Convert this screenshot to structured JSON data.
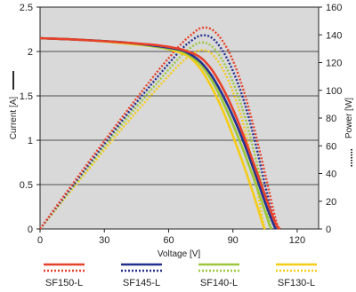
{
  "chart_data": {
    "type": "line",
    "xlabel": "Voltage [V]",
    "ylabel_left": "Current [A]",
    "ylabel_right": "Power [W]",
    "xlim": [
      0,
      130
    ],
    "ylim_left": [
      0,
      2.5
    ],
    "ylim_right": [
      0,
      160
    ],
    "x_ticks": [
      "0",
      "30",
      "60",
      "90",
      "120"
    ],
    "x_tick_values": [
      0,
      30,
      60,
      90,
      120
    ],
    "y_left_ticks": [
      "0",
      "0.5",
      "1",
      "1.5",
      "2",
      "2.5"
    ],
    "y_left_tick_values": [
      0,
      0.5,
      1,
      1.5,
      2,
      2.5
    ],
    "y_right_ticks": [
      "0",
      "20",
      "40",
      "60",
      "80",
      "100",
      "120",
      "140",
      "160"
    ],
    "y_right_tick_values": [
      0,
      20,
      40,
      60,
      80,
      100,
      120,
      140,
      160
    ],
    "grid": "horizontal",
    "legend_position": "bottom",
    "series": [
      {
        "name": "SF150-L",
        "color": "#e8412b",
        "current": {
          "x": [
            0,
            20,
            40,
            55,
            65,
            70,
            75,
            80,
            85,
            90,
            95,
            100,
            105,
            110,
            112
          ],
          "y": [
            2.15,
            2.13,
            2.1,
            2.07,
            2.03,
            1.99,
            1.93,
            1.8,
            1.6,
            1.35,
            1.05,
            0.72,
            0.38,
            0.06,
            0
          ]
        },
        "power": {
          "x": [
            0,
            20,
            40,
            55,
            65,
            70,
            75,
            80,
            85,
            90,
            95,
            100,
            105,
            110,
            112
          ],
          "y": [
            0,
            42.6,
            84,
            113.9,
            132,
            139.3,
            144.8,
            144,
            136,
            121.5,
            99.8,
            72,
            39.9,
            6.6,
            0
          ]
        }
      },
      {
        "name": "SF145-L",
        "color": "#24308e",
        "current": {
          "x": [
            0,
            20,
            40,
            55,
            65,
            70,
            75,
            80,
            85,
            90,
            95,
            100,
            105,
            109,
            110
          ],
          "y": [
            2.15,
            2.13,
            2.1,
            2.06,
            2.02,
            1.97,
            1.88,
            1.73,
            1.52,
            1.27,
            0.98,
            0.65,
            0.3,
            0.05,
            0
          ]
        },
        "power": {
          "x": [
            0,
            20,
            40,
            55,
            65,
            70,
            75,
            80,
            85,
            90,
            95,
            100,
            105,
            109,
            110
          ],
          "y": [
            0,
            41,
            81.5,
            110,
            128,
            135,
            139.5,
            138,
            129,
            114,
            93,
            65,
            31.5,
            5.5,
            0
          ]
        }
      },
      {
        "name": "SF140-L",
        "color": "#9dc83c",
        "current": {
          "x": [
            0,
            20,
            40,
            55,
            65,
            70,
            75,
            80,
            85,
            90,
            95,
            100,
            105,
            107,
            108
          ],
          "y": [
            2.15,
            2.13,
            2.1,
            2.05,
            2.01,
            1.95,
            1.85,
            1.68,
            1.45,
            1.18,
            0.88,
            0.55,
            0.2,
            0.05,
            0
          ]
        },
        "power": {
          "x": [
            0,
            20,
            40,
            55,
            65,
            70,
            75,
            80,
            85,
            90,
            95,
            100,
            105,
            107,
            108
          ],
          "y": [
            0,
            39.6,
            78.8,
            106,
            123.5,
            130.5,
            134.5,
            132,
            122,
            106,
            84,
            55,
            21,
            5.5,
            0
          ]
        }
      },
      {
        "name": "SF130-L",
        "color": "#f5cc17",
        "current": {
          "x": [
            0,
            20,
            40,
            55,
            65,
            70,
            75,
            80,
            85,
            90,
            95,
            100,
            104,
            105
          ],
          "y": [
            2.15,
            2.13,
            2.09,
            2.05,
            1.99,
            1.93,
            1.8,
            1.6,
            1.35,
            1.05,
            0.72,
            0.36,
            0.05,
            0
          ]
        },
        "power": {
          "x": [
            0,
            20,
            40,
            55,
            65,
            70,
            75,
            80,
            85,
            90,
            95,
            100,
            104,
            105
          ],
          "y": [
            0,
            38,
            75.5,
            102,
            118.5,
            125,
            129,
            126.5,
            116,
            99,
            75,
            40,
            5.5,
            0
          ]
        }
      }
    ]
  }
}
